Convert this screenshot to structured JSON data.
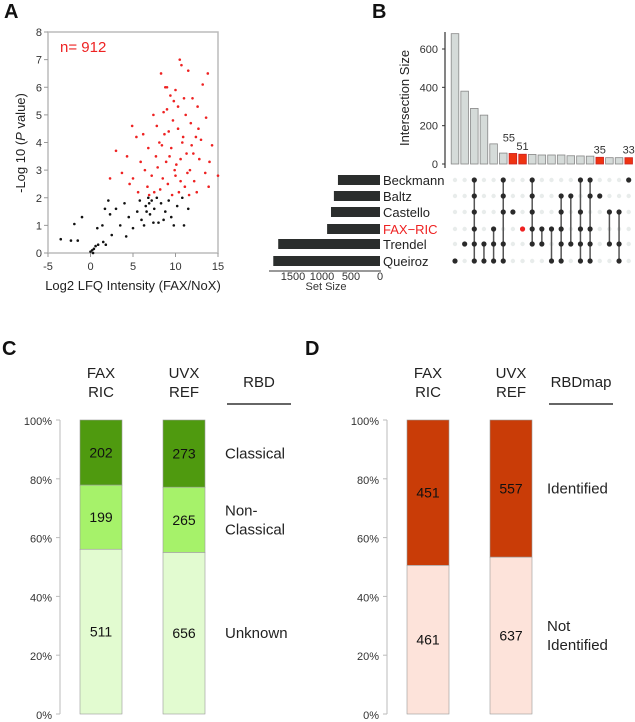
{
  "panels": {
    "a": "A",
    "b": "B",
    "c": "C",
    "d": "D"
  },
  "chart_data": [
    {
      "panel": "A",
      "type": "scatter",
      "xlabel": "Log2 LFQ Intensity (FAX/NoX)",
      "ylabel_pre": "-Log 10 (",
      "ylabel_italic": "P",
      "ylabel_post": " value)",
      "annotation": "n= 912",
      "xlim": [
        -5,
        15
      ],
      "ylim": [
        0,
        8
      ],
      "xticks": [
        -5,
        0,
        5,
        10,
        15
      ],
      "yticks": [
        0,
        1,
        2,
        3,
        4,
        5,
        6,
        7,
        8
      ],
      "grid": false,
      "series": [
        {
          "color": "#ee2222",
          "points": [
            [
              10.5,
              7.0
            ],
            [
              10.7,
              6.8
            ],
            [
              11.5,
              6.6
            ],
            [
              8.3,
              6.5
            ],
            [
              13.8,
              6.5
            ],
            [
              13.2,
              6.1
            ],
            [
              8.8,
              6.0
            ],
            [
              9.0,
              6.0
            ],
            [
              10,
              5.9
            ],
            [
              9.4,
              5.7
            ],
            [
              11,
              5.6
            ],
            [
              12,
              5.6
            ],
            [
              9.8,
              5.5
            ],
            [
              12.6,
              5.3
            ],
            [
              7.4,
              5.0
            ],
            [
              8.6,
              5.1
            ],
            [
              13.6,
              4.9
            ],
            [
              4.9,
              4.6
            ],
            [
              11.8,
              4.7
            ],
            [
              7.8,
              4.6
            ],
            [
              9.2,
              4.4
            ],
            [
              10.3,
              4.5
            ],
            [
              6.2,
              4.3
            ],
            [
              12.4,
              4.2
            ],
            [
              5.4,
              4.2
            ],
            [
              8.1,
              4.0
            ],
            [
              10.8,
              4.0
            ],
            [
              13.0,
              4.1
            ],
            [
              14.3,
              3.9
            ],
            [
              3.0,
              3.7
            ],
            [
              6.8,
              3.8
            ],
            [
              9.5,
              3.8
            ],
            [
              11.3,
              3.6
            ],
            [
              4.3,
              3.5
            ],
            [
              7.7,
              3.5
            ],
            [
              12.8,
              3.4
            ],
            [
              5.9,
              3.3
            ],
            [
              8.9,
              3.3
            ],
            [
              10.1,
              3.2
            ],
            [
              14.0,
              3.3
            ],
            [
              3.7,
              2.9
            ],
            [
              6.4,
              3.0
            ],
            [
              9.9,
              3.0
            ],
            [
              11.7,
              3.0
            ],
            [
              13.5,
              2.9
            ],
            [
              15,
              2.8
            ],
            [
              2.3,
              2.7
            ],
            [
              5.0,
              2.7
            ],
            [
              7.2,
              2.8
            ],
            [
              8.5,
              2.7
            ],
            [
              10.6,
              2.6
            ],
            [
              12.2,
              2.6
            ],
            [
              4.6,
              2.5
            ],
            [
              6.7,
              2.4
            ],
            [
              9.1,
              2.5
            ],
            [
              11.1,
              2.4
            ],
            [
              13.9,
              2.4
            ],
            [
              5.6,
              2.2
            ],
            [
              7.5,
              2.2
            ],
            [
              8.2,
              2.3
            ],
            [
              10.4,
              2.2
            ],
            [
              12.5,
              2.2
            ],
            [
              6.9,
              2.1
            ],
            [
              9.6,
              2.1
            ],
            [
              11.6,
              2.1
            ],
            [
              9.7,
              4.8
            ],
            [
              10.9,
              4.2
            ],
            [
              8.4,
              3.9
            ],
            [
              11.9,
              3.9
            ],
            [
              9.3,
              3.5
            ],
            [
              10.6,
              3.4
            ],
            [
              12.1,
              3.6
            ],
            [
              7.9,
              3.1
            ],
            [
              11.4,
              2.9
            ],
            [
              10.0,
              2.8
            ],
            [
              8.7,
              4.3
            ],
            [
              12.7,
              4.5
            ],
            [
              9.0,
              5.2
            ],
            [
              11.2,
              5.0
            ],
            [
              10.3,
              5.3
            ]
          ]
        },
        {
          "color": "#111111",
          "points": [
            [
              -3.5,
              0.5
            ],
            [
              -2.3,
              0.45
            ],
            [
              -1.5,
              0.45
            ],
            [
              -1.9,
              1.05
            ],
            [
              -1,
              1.3
            ],
            [
              0,
              0.05
            ],
            [
              0.2,
              0.1
            ],
            [
              0.4,
              0.15
            ],
            [
              0.6,
              0.25
            ],
            [
              0.9,
              0.3
            ],
            [
              0.3,
              0.0
            ],
            [
              1.5,
              0.4
            ],
            [
              1.8,
              0.3
            ],
            [
              0.8,
              0.9
            ],
            [
              1.4,
              1.0
            ],
            [
              1.7,
              1.6
            ],
            [
              2.1,
              1.9
            ],
            [
              2.3,
              1.4
            ],
            [
              3,
              1.6
            ],
            [
              2.5,
              0.65
            ],
            [
              3.5,
              1.0
            ],
            [
              4.2,
              0.6
            ],
            [
              4.5,
              1.3
            ],
            [
              5,
              0.9
            ],
            [
              5.5,
              1.5
            ],
            [
              6.0,
              1.2
            ],
            [
              6.5,
              1.7
            ],
            [
              6.8,
              2.0
            ],
            [
              6.9,
              1.8
            ],
            [
              7.0,
              1.4
            ],
            [
              7.2,
              1.9
            ],
            [
              7.5,
              1.6
            ],
            [
              8.0,
              1.1
            ],
            [
              8.3,
              1.8
            ],
            [
              8.8,
              1.5
            ],
            [
              9.2,
              1.9
            ],
            [
              9.5,
              1.3
            ],
            [
              10.2,
              1.7
            ],
            [
              10.8,
              2.0
            ],
            [
              11.5,
              1.6
            ],
            [
              11.0,
              1.0
            ],
            [
              6.3,
              1.0
            ],
            [
              7.8,
              2.0
            ],
            [
              5.8,
              1.9
            ],
            [
              4.0,
              1.8
            ],
            [
              8.6,
              1.2
            ],
            [
              6.6,
              1.5
            ],
            [
              7.4,
              1.1
            ],
            [
              9.8,
              1.0
            ]
          ]
        }
      ]
    },
    {
      "panel": "B",
      "type": "upset",
      "ylabel": "Intersection Size",
      "set_size_label": "Set Size",
      "yticks": [
        0,
        200,
        400,
        600
      ],
      "set_ticks": [
        1500,
        1000,
        500,
        0
      ],
      "sets": [
        "Beckmann",
        "Baltz",
        "Castello",
        "FAX−RIC",
        "Trendel",
        "Queiroz"
      ],
      "set_sizes": [
        725,
        795,
        845,
        912,
        1755,
        1840
      ],
      "highlight_set": 3,
      "intersection_sizes": [
        680,
        380,
        290,
        255,
        105,
        57,
        55,
        51,
        50,
        47,
        47,
        47,
        43,
        42,
        41,
        35,
        33,
        33,
        33
      ],
      "intersection_labels": {
        "6": "55",
        "7": "51",
        "15": "35",
        "18": "33"
      },
      "highlighted": [
        6,
        7,
        15,
        18
      ],
      "intersections": [
        [
          5
        ],
        [
          4
        ],
        [
          0,
          1,
          2,
          3,
          4,
          5
        ],
        [
          4,
          5
        ],
        [
          3,
          4,
          5
        ],
        [
          0,
          1,
          2,
          4,
          5
        ],
        [
          2
        ],
        [
          3
        ],
        [
          0,
          1,
          2,
          3,
          4
        ],
        [
          3,
          4
        ],
        [
          3,
          5
        ],
        [
          1,
          2,
          3,
          4,
          5
        ],
        [
          1,
          4
        ],
        [
          0,
          2,
          3,
          4,
          5
        ],
        [
          0,
          1,
          3,
          4,
          5
        ],
        [
          1
        ],
        [
          2,
          4
        ],
        [
          2,
          4,
          5
        ],
        [
          0
        ]
      ],
      "colors": {
        "bar": "#d5dbd9",
        "highlight": "#ee3311",
        "dot": "#2a2a2a",
        "empty_dot": "#e8eceb",
        "set_bar": "#2b2e2d",
        "highlight_text": "#ee2222"
      }
    },
    {
      "panel": "C",
      "type": "stacked_bar",
      "header": "RBD",
      "categories": [
        "FAX\nRIC",
        "UVX\nREF"
      ],
      "yticks": [
        "0%",
        "20%",
        "40%",
        "60%",
        "80%",
        "100%"
      ],
      "series": [
        {
          "name": "Classical",
          "values": [
            202,
            273
          ],
          "color": "#4f9a0f"
        },
        {
          "name": "Non-\nClassical",
          "values": [
            199,
            265
          ],
          "color": "#a6f26a"
        },
        {
          "name": "Unknown",
          "values": [
            511,
            656
          ],
          "color": "#e2fbd0"
        }
      ]
    },
    {
      "panel": "D",
      "type": "stacked_bar",
      "header": "RBDmap",
      "categories": [
        "FAX\nRIC",
        "UVX\nREF"
      ],
      "yticks": [
        "0%",
        "20%",
        "40%",
        "60%",
        "80%",
        "100%"
      ],
      "series": [
        {
          "name": "Identified",
          "values": [
            451,
            557
          ],
          "color": "#c93c07"
        },
        {
          "name": "Not\nIdentified",
          "values": [
            461,
            637
          ],
          "color": "#fde3da"
        }
      ]
    }
  ]
}
